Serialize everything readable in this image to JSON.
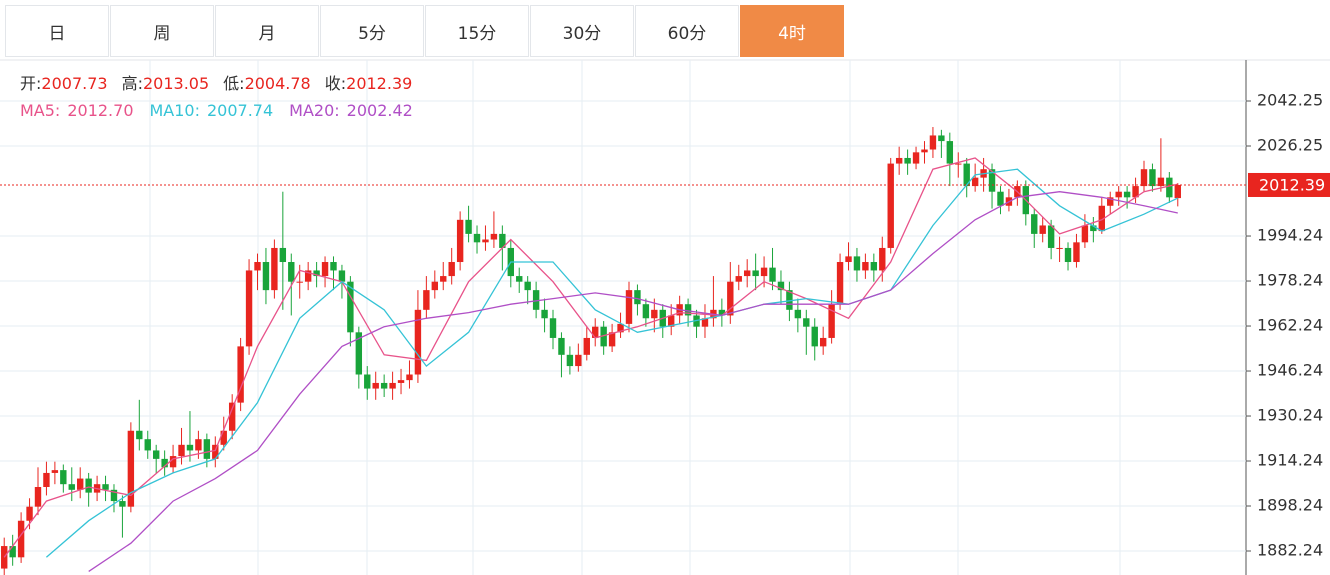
{
  "tabs": [
    "日",
    "周",
    "月",
    "5分",
    "15分",
    "30分",
    "60分",
    "4时"
  ],
  "active_tab": 7,
  "chart_data": {
    "type": "candlestick",
    "info": [
      {
        "label": "开:",
        "value": "2007.73"
      },
      {
        "label": "高:",
        "value": "2013.05"
      },
      {
        "label": "低:",
        "value": "2004.78"
      },
      {
        "label": "收:",
        "value": "2012.39"
      }
    ],
    "up_color": "#e8251f",
    "down_color": "#19a43a",
    "open": [
      1876,
      1884,
      1880,
      1893,
      1898,
      1905,
      1910,
      1911,
      1906,
      1904,
      1908,
      1903,
      1906,
      1904,
      1900,
      1898,
      1925,
      1922,
      1918,
      1915,
      1912,
      1916,
      1920,
      1918,
      1922,
      1915,
      1920,
      1925,
      1935,
      1955,
      1982,
      1985,
      1975,
      1990,
      1985,
      1978,
      1978,
      1982,
      1980,
      1985,
      1982,
      1978,
      1960,
      1945,
      1940,
      1942,
      1940,
      1942,
      1943,
      1945,
      1968,
      1975,
      1978,
      1980,
      1985,
      2000,
      1995,
      1992,
      1993,
      1995,
      1990,
      1980,
      1978,
      1975,
      1968,
      1965,
      1958,
      1952,
      1948,
      1952,
      1958,
      1962,
      1955,
      1960,
      1963,
      1975,
      1970,
      1965,
      1968,
      1962,
      1966,
      1970,
      1966,
      1962,
      1965,
      1968,
      1966,
      1978,
      1980,
      1982,
      1980,
      1983,
      1978,
      1975,
      1968,
      1965,
      1962,
      1955,
      1958,
      1970,
      1985,
      1987,
      1982,
      1985,
      1982,
      1990,
      2020,
      2022,
      2020,
      2024,
      2025,
      2030,
      2028,
      2020,
      2020,
      2012,
      2015,
      2018,
      2010,
      2005,
      2008,
      2012,
      2002,
      1995,
      1998,
      1990,
      1990,
      1985,
      1992,
      1998,
      1996,
      2005,
      2008,
      2010,
      2008,
      2012,
      2018,
      2012,
      2015,
      2007.73
    ],
    "high": [
      1887,
      1888,
      1896,
      1901,
      1912,
      1914,
      1914,
      1913,
      1912,
      1912,
      1910,
      1909,
      1909,
      1906,
      1902,
      1928,
      1936,
      1925,
      1920,
      1918,
      1920,
      1926,
      1932,
      1925,
      1924,
      1923,
      1930,
      1938,
      1958,
      1986,
      1988,
      1990,
      1993,
      2010,
      1988,
      1984,
      1985,
      1985,
      1987,
      1987,
      1984,
      1980,
      1962,
      1948,
      1946,
      1945,
      1946,
      1947,
      1950,
      1975,
      1980,
      1982,
      1985,
      1990,
      2003,
      2005,
      1998,
      1998,
      2003,
      1998,
      1993,
      1983,
      1980,
      1978,
      1972,
      1968,
      1960,
      1955,
      1956,
      1962,
      1965,
      1964,
      1963,
      1967,
      1978,
      1977,
      1972,
      1972,
      1970,
      1970,
      1973,
      1972,
      1968,
      1970,
      1980,
      1972,
      1985,
      1984,
      1986,
      1988,
      1987,
      1990,
      1982,
      1978,
      1972,
      1968,
      1965,
      1962,
      1975,
      1988,
      1992,
      1990,
      1988,
      1988,
      1994,
      2022,
      2026,
      2025,
      2026,
      2028,
      2033,
      2032,
      2031,
      2024,
      2022,
      2020,
      2022,
      2020,
      2012,
      2011,
      2014,
      2014,
      2004,
      2001,
      2000,
      1994,
      1992,
      1995,
      2002,
      2001,
      2008,
      2010,
      2012,
      2012,
      2015,
      2021,
      2020,
      2029,
      2017,
      2013.05
    ],
    "low": [
      1873,
      1877,
      1878,
      1890,
      1895,
      1902,
      1906,
      1903,
      1900,
      1901,
      1898,
      1900,
      1900,
      1896,
      1887,
      1896,
      1918,
      1915,
      1910,
      1909,
      1910,
      1913,
      1914,
      1915,
      1912,
      1912,
      1918,
      1922,
      1932,
      1952,
      1975,
      1970,
      1972,
      1968,
      1966,
      1972,
      1975,
      1976,
      1976,
      1975,
      1972,
      1955,
      1940,
      1936,
      1936,
      1937,
      1936,
      1938,
      1940,
      1942,
      1965,
      1972,
      1975,
      1977,
      1982,
      1992,
      1988,
      1989,
      1990,
      1982,
      1976,
      1974,
      1970,
      1965,
      1960,
      1954,
      1944,
      1945,
      1946,
      1950,
      1955,
      1952,
      1953,
      1958,
      1960,
      1966,
      1962,
      1960,
      1958,
      1959,
      1963,
      1962,
      1958,
      1958,
      1962,
      1962,
      1963,
      1975,
      1976,
      1975,
      1976,
      1975,
      1970,
      1964,
      1960,
      1952,
      1950,
      1952,
      1956,
      1968,
      1982,
      1978,
      1979,
      1978,
      1978,
      1988,
      2016,
      2016,
      2018,
      2020,
      2022,
      2022,
      2012,
      2015,
      2008,
      2010,
      2010,
      2004,
      2002,
      2003,
      2005,
      1998,
      1990,
      1992,
      1986,
      1985,
      1982,
      1983,
      1990,
      1992,
      1995,
      2002,
      2005,
      2004,
      2006,
      2010,
      2010,
      2010,
      2006,
      2004.78
    ],
    "close": [
      1884,
      1880,
      1893,
      1898,
      1905,
      1910,
      1911,
      1906,
      1904,
      1908,
      1903,
      1906,
      1904,
      1900,
      1898,
      1925,
      1922,
      1918,
      1915,
      1912,
      1916,
      1920,
      1918,
      1922,
      1915,
      1920,
      1925,
      1935,
      1955,
      1982,
      1985,
      1975,
      1990,
      1985,
      1978,
      1978,
      1982,
      1980,
      1985,
      1982,
      1978,
      1960,
      1945,
      1940,
      1942,
      1940,
      1942,
      1943,
      1945,
      1968,
      1975,
      1978,
      1980,
      1985,
      2000,
      1995,
      1992,
      1993,
      1995,
      1990,
      1980,
      1978,
      1975,
      1968,
      1965,
      1958,
      1952,
      1948,
      1952,
      1958,
      1962,
      1955,
      1960,
      1963,
      1975,
      1970,
      1965,
      1968,
      1962,
      1966,
      1970,
      1966,
      1962,
      1965,
      1968,
      1966,
      1978,
      1980,
      1982,
      1980,
      1983,
      1978,
      1975,
      1968,
      1965,
      1962,
      1955,
      1958,
      1970,
      1985,
      1987,
      1982,
      1985,
      1982,
      1990,
      2020,
      2022,
      2020,
      2024,
      2025,
      2030,
      2028,
      2020,
      2020,
      2012,
      2015,
      2018,
      2010,
      2005,
      2008,
      2012,
      2002,
      1995,
      1998,
      1990,
      1990,
      1985,
      1992,
      1998,
      1996,
      2005,
      2008,
      2010,
      2008,
      2012,
      2018,
      2012,
      2015,
      2008,
      2012.39
    ],
    "series": [
      {
        "name": "MA5:",
        "value_label": "2012.70",
        "color": "#e8538a",
        "x": [
          0,
          5,
          10,
          15,
          20,
          25,
          30,
          35,
          40,
          45,
          50,
          55,
          60,
          65,
          70,
          75,
          80,
          85,
          90,
          95,
          100,
          105,
          110,
          115,
          120,
          125,
          130,
          135,
          139
        ],
        "values": [
          1880,
          1900,
          1905,
          1902,
          1915,
          1918,
          1955,
          1982,
          1978,
          1952,
          1950,
          1978,
          1993,
          1978,
          1958,
          1962,
          1967,
          1966,
          1978,
          1972,
          1965,
          1985,
          2018,
          2022,
          2010,
          1995,
          2000,
          2010,
          2012.7
        ]
      },
      {
        "name": "MA10:",
        "value_label": "2007.74",
        "color": "#35c3d6",
        "x": [
          5,
          10,
          15,
          20,
          25,
          30,
          35,
          40,
          45,
          50,
          55,
          60,
          65,
          70,
          75,
          80,
          85,
          90,
          95,
          100,
          105,
          110,
          115,
          120,
          125,
          130,
          135,
          139
        ],
        "values": [
          1880,
          1893,
          1903,
          1910,
          1915,
          1935,
          1965,
          1978,
          1968,
          1948,
          1960,
          1985,
          1985,
          1968,
          1960,
          1963,
          1966,
          1970,
          1972,
          1970,
          1975,
          1998,
          2016,
          2018,
          2005,
          1996,
          2002,
          2007.74
        ]
      },
      {
        "name": "MA20:",
        "value_label": "2002.42",
        "color": "#b04fc6",
        "x": [
          10,
          15,
          20,
          25,
          30,
          35,
          40,
          45,
          50,
          55,
          60,
          65,
          70,
          75,
          80,
          85,
          90,
          95,
          100,
          105,
          110,
          115,
          120,
          125,
          130,
          135,
          139
        ],
        "values": [
          1875,
          1885,
          1900,
          1908,
          1918,
          1938,
          1955,
          1962,
          1965,
          1967,
          1970,
          1972,
          1974,
          1972,
          1968,
          1966,
          1970,
          1970,
          1970,
          1975,
          1988,
          2000,
          2008,
          2010,
          2008,
          2005,
          2002.42
        ]
      }
    ],
    "last_price": {
      "value": 2012.39,
      "label": "2012.39"
    },
    "ylim": [
      1873.71,
      2056.83
    ],
    "yticks": [
      2042.25,
      2026.25,
      1994.24,
      1978.24,
      1962.24,
      1946.24,
      1930.24,
      1914.24,
      1898.24,
      1882.24
    ],
    "grid": true
  }
}
